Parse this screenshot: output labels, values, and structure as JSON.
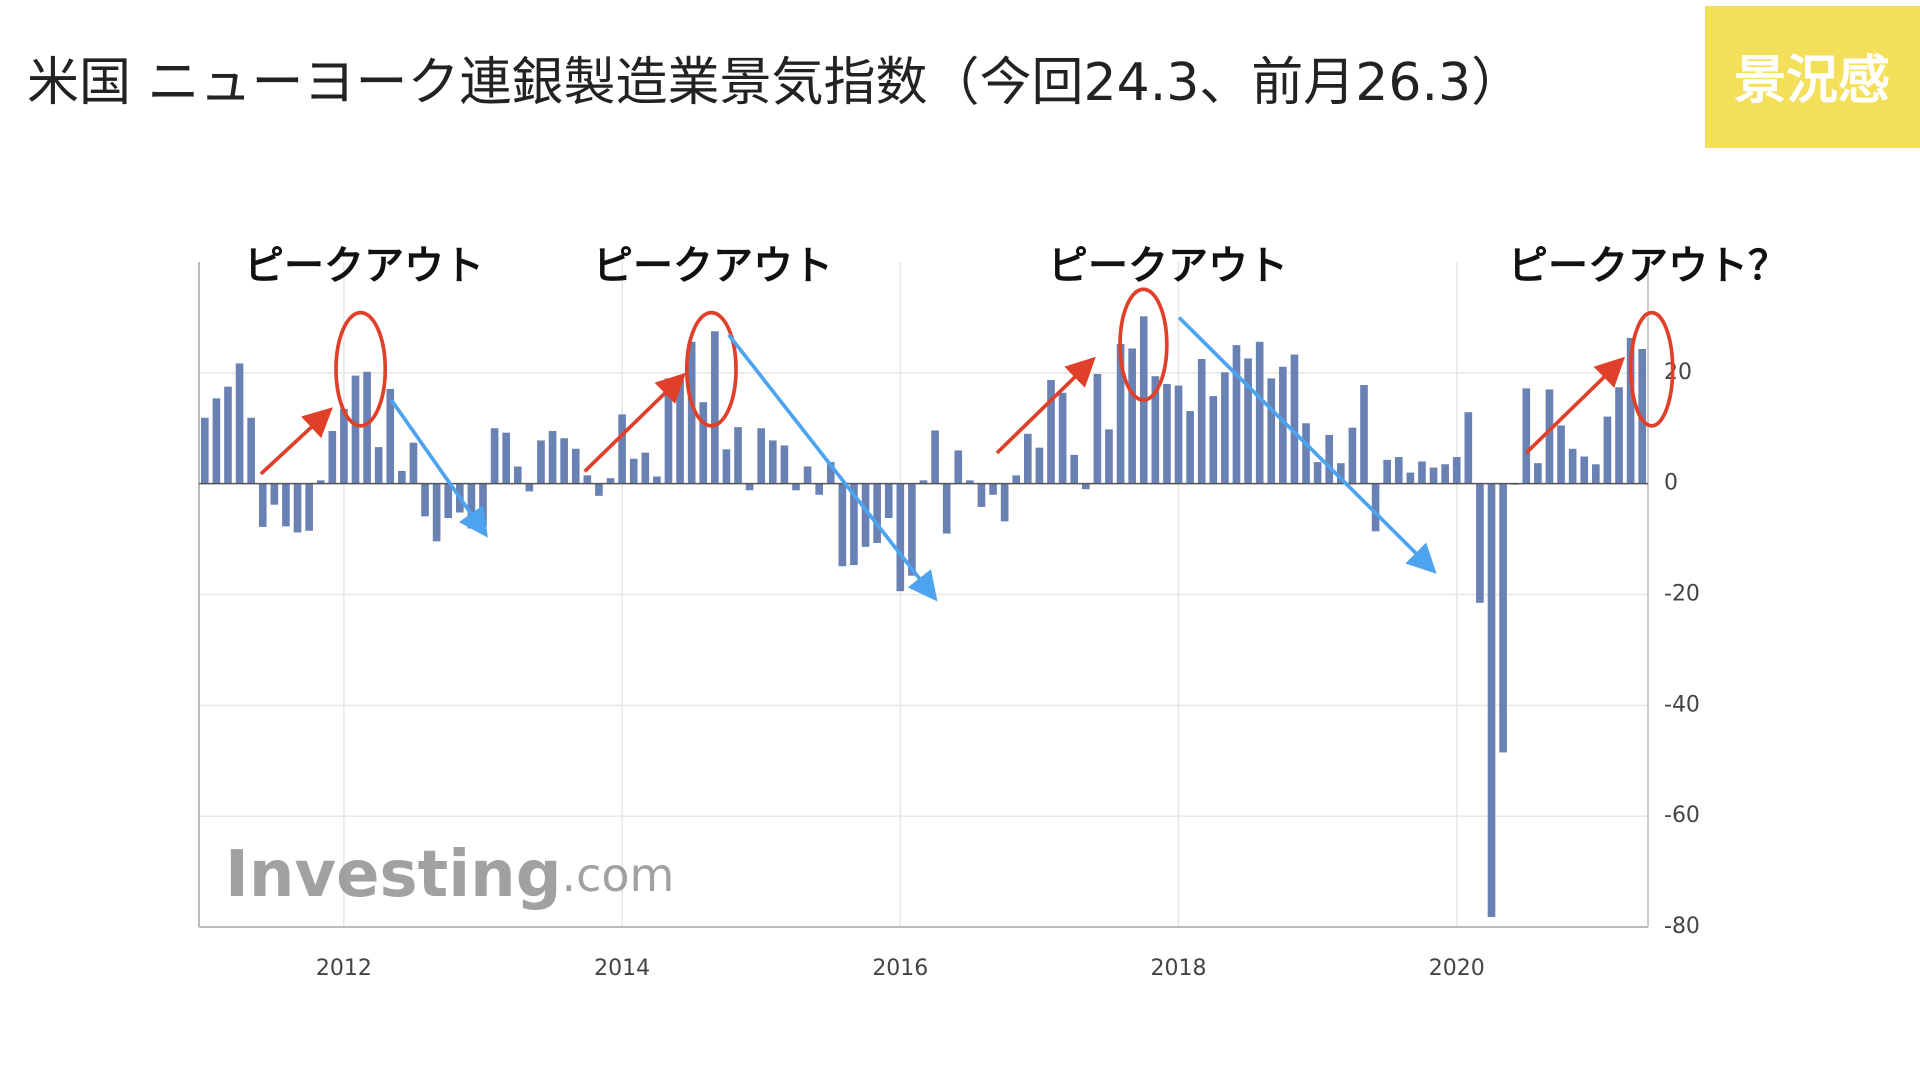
{
  "header": {
    "title": "米国 ニューヨーク連銀製造業景気指数（今回24.3、前月26.3）",
    "badge": "景況感"
  },
  "chart_data": {
    "type": "bar",
    "annotations": [
      "ピークアウト",
      "ピークアウト",
      "ピークアウト",
      "ピークアウト？"
    ],
    "watermark": [
      "Investing",
      ".com"
    ],
    "categories": [
      null,
      null,
      null,
      null,
      null,
      null,
      null,
      null,
      null,
      null,
      null,
      null,
      "2012",
      null,
      null,
      null,
      null,
      null,
      null,
      null,
      null,
      null,
      null,
      null,
      null,
      null,
      null,
      null,
      null,
      null,
      null,
      null,
      null,
      null,
      null,
      null,
      "2014",
      null,
      null,
      null,
      null,
      null,
      null,
      null,
      null,
      null,
      null,
      null,
      null,
      null,
      null,
      null,
      null,
      null,
      null,
      null,
      null,
      null,
      null,
      null,
      "2016",
      null,
      null,
      null,
      null,
      null,
      null,
      null,
      null,
      null,
      null,
      null,
      null,
      null,
      null,
      null,
      null,
      null,
      null,
      null,
      null,
      null,
      null,
      null,
      "2018",
      null,
      null,
      null,
      null,
      null,
      null,
      null,
      null,
      null,
      null,
      null,
      null,
      null,
      null,
      null,
      null,
      null,
      null,
      null,
      null,
      null,
      null,
      null,
      "2020",
      null,
      null,
      null,
      null,
      null,
      null,
      null,
      null,
      null,
      null,
      null,
      null,
      null,
      null,
      null,
      null
    ],
    "values": [
      11.9,
      15.4,
      17.5,
      21.7,
      11.9,
      -7.8,
      -3.8,
      -7.7,
      -8.8,
      -8.5,
      0.6,
      9.5,
      13.5,
      19.5,
      20.2,
      6.6,
      17.1,
      2.3,
      7.4,
      -5.9,
      -10.4,
      -6.2,
      -5.2,
      -8.1,
      -7.8,
      10.0,
      9.2,
      3.1,
      -1.4,
      7.8,
      9.5,
      8.2,
      6.3,
      1.5,
      -2.2,
      1.0,
      12.5,
      4.5,
      5.6,
      1.3,
      19.0,
      19.3,
      25.6,
      14.7,
      27.5,
      6.2,
      10.2,
      -1.2,
      10.0,
      7.8,
      6.9,
      -1.2,
      3.1,
      -2.0,
      3.9,
      -14.9,
      -14.7,
      -11.4,
      -10.7,
      -6.2,
      -19.4,
      -16.6,
      0.6,
      9.6,
      -9.0,
      6.0,
      0.6,
      -4.2,
      -2.0,
      -6.8,
      1.5,
      9.0,
      6.5,
      18.7,
      16.4,
      5.2,
      -1.0,
      19.8,
      9.8,
      25.2,
      24.4,
      30.2,
      19.4,
      18.0,
      17.7,
      13.1,
      22.5,
      15.8,
      20.1,
      25.0,
      22.6,
      25.6,
      19.0,
      21.1,
      23.3,
      10.9,
      3.9,
      8.8,
      3.7,
      10.1,
      17.8,
      -8.6,
      4.3,
      4.8,
      2.0,
      4.0,
      2.9,
      3.5,
      4.8,
      12.9,
      -21.5,
      -78.2,
      -48.5,
      -0.2,
      17.2,
      3.7,
      17.0,
      10.5,
      6.3,
      4.9,
      3.5,
      12.1,
      17.4,
      26.3,
      24.3
    ],
    "color": "#6a82b3",
    "ylim": [
      -80,
      40
    ],
    "yticks": [
      -80,
      -60,
      -40,
      -20,
      0,
      20
    ],
    "grid": true
  }
}
